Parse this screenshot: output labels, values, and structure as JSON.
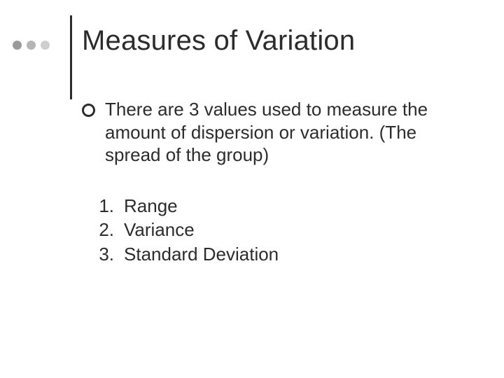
{
  "colors": {
    "text": "#2c2c2c",
    "background": "#ffffff",
    "dot_dark": "#9a9a9a",
    "dot_mid": "#b5b5b5",
    "dot_light": "#cfcfcf",
    "vline": "#2c2c2c"
  },
  "title": "Measures of Variation",
  "intro": "There are 3 values used to measure the amount of dispersion or variation. (The spread of the group)",
  "list": {
    "n1": "1.",
    "n2": "2.",
    "n3": "3.",
    "i1": "Range",
    "i2": "Variance",
    "i3": "Standard Deviation"
  }
}
